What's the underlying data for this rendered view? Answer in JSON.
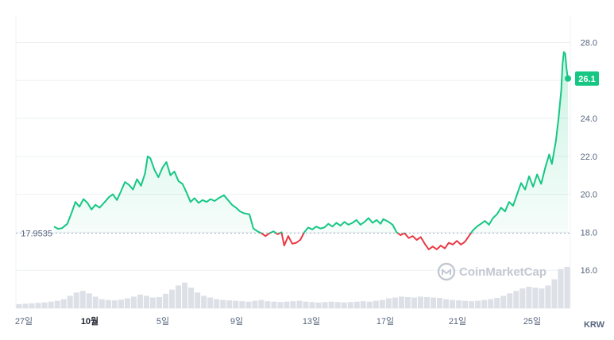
{
  "chart_data": {
    "type": "line",
    "y_axis": {
      "ticks": [
        "16.0",
        "18.0",
        "20.0",
        "22.0",
        "24.0",
        "26.0",
        "28.0"
      ],
      "range": [
        14.0,
        29.4
      ],
      "position": "right"
    },
    "x_axis": {
      "tick_labels": [
        "27일",
        "10월",
        "5일",
        "9일",
        "13일",
        "17일",
        "21일",
        "25일"
      ],
      "bold_labels": [
        "10월"
      ],
      "unit": "KRW"
    },
    "reference_value": 17.9535,
    "reference_label": "17.9535",
    "current_price_label": "26.1",
    "colors": {
      "up": "#16c784",
      "down": "#ea3943",
      "volume": "#dde1e7",
      "badge": "#16c784"
    },
    "watermark": "CoinMarketCap",
    "series": [
      {
        "points": [
          [
            0.0,
            18.3
          ],
          [
            0.3,
            18.18
          ],
          [
            0.6,
            18.22
          ],
          [
            1.0,
            18.45
          ],
          [
            1.3,
            19.0
          ],
          [
            1.6,
            19.6
          ],
          [
            1.9,
            19.35
          ],
          [
            2.2,
            19.75
          ],
          [
            2.5,
            19.55
          ],
          [
            2.8,
            19.2
          ],
          [
            3.1,
            19.45
          ],
          [
            3.4,
            19.3
          ],
          [
            3.8,
            19.6
          ],
          [
            4.1,
            19.85
          ],
          [
            4.4,
            20.0
          ],
          [
            4.7,
            19.7
          ],
          [
            5.0,
            20.15
          ],
          [
            5.3,
            20.65
          ],
          [
            5.6,
            20.5
          ],
          [
            5.9,
            20.25
          ],
          [
            6.2,
            20.8
          ],
          [
            6.5,
            20.45
          ],
          [
            6.8,
            21.1
          ],
          [
            7.0,
            22.0
          ],
          [
            7.2,
            21.9
          ],
          [
            7.5,
            21.3
          ],
          [
            7.8,
            20.9
          ],
          [
            8.1,
            21.4
          ],
          [
            8.4,
            21.7
          ],
          [
            8.7,
            21.0
          ],
          [
            9.0,
            21.2
          ],
          [
            9.3,
            20.7
          ],
          [
            9.6,
            20.55
          ],
          [
            9.9,
            20.1
          ],
          [
            10.2,
            19.6
          ],
          [
            10.5,
            19.8
          ],
          [
            10.8,
            19.55
          ],
          [
            11.1,
            19.7
          ],
          [
            11.4,
            19.6
          ],
          [
            11.7,
            19.75
          ],
          [
            12.0,
            19.65
          ],
          [
            12.3,
            19.8
          ],
          [
            12.7,
            19.95
          ],
          [
            13.0,
            19.7
          ],
          [
            13.3,
            19.45
          ],
          [
            13.6,
            19.3
          ],
          [
            13.9,
            19.1
          ],
          [
            14.2,
            19.0
          ],
          [
            14.6,
            18.95
          ],
          [
            14.9,
            18.2
          ],
          [
            15.2,
            18.05
          ],
          [
            15.5,
            17.95
          ],
          [
            15.8,
            17.8
          ],
          [
            16.1,
            17.95
          ],
          [
            16.4,
            18.05
          ],
          [
            16.7,
            17.9
          ],
          [
            17.0,
            18.0
          ],
          [
            17.2,
            17.3
          ],
          [
            17.5,
            17.8
          ],
          [
            17.8,
            17.4
          ],
          [
            18.1,
            17.45
          ],
          [
            18.4,
            17.6
          ],
          [
            18.7,
            18.0
          ],
          [
            19.0,
            18.25
          ],
          [
            19.3,
            18.15
          ],
          [
            19.6,
            18.3
          ],
          [
            19.9,
            18.2
          ],
          [
            20.2,
            18.25
          ],
          [
            20.5,
            18.45
          ],
          [
            20.8,
            18.3
          ],
          [
            21.1,
            18.5
          ],
          [
            21.4,
            18.35
          ],
          [
            21.7,
            18.55
          ],
          [
            22.0,
            18.4
          ],
          [
            22.3,
            18.5
          ],
          [
            22.6,
            18.65
          ],
          [
            22.9,
            18.4
          ],
          [
            23.2,
            18.55
          ],
          [
            23.5,
            18.75
          ],
          [
            23.8,
            18.5
          ],
          [
            24.1,
            18.65
          ],
          [
            24.4,
            18.45
          ],
          [
            24.6,
            18.7
          ],
          [
            25.0,
            18.55
          ],
          [
            25.3,
            18.4
          ],
          [
            25.6,
            18.0
          ],
          [
            25.9,
            17.85
          ],
          [
            26.2,
            17.95
          ],
          [
            26.5,
            17.7
          ],
          [
            26.8,
            17.8
          ],
          [
            27.1,
            17.6
          ],
          [
            27.4,
            17.75
          ],
          [
            27.7,
            17.4
          ],
          [
            28.0,
            17.1
          ],
          [
            28.3,
            17.25
          ],
          [
            28.6,
            17.1
          ],
          [
            28.9,
            17.3
          ],
          [
            29.2,
            17.15
          ],
          [
            29.5,
            17.45
          ],
          [
            29.8,
            17.35
          ],
          [
            30.1,
            17.55
          ],
          [
            30.4,
            17.35
          ],
          [
            30.7,
            17.5
          ],
          [
            31.0,
            17.8
          ],
          [
            31.3,
            18.1
          ],
          [
            31.6,
            18.3
          ],
          [
            31.9,
            18.45
          ],
          [
            32.2,
            18.6
          ],
          [
            32.5,
            18.4
          ],
          [
            32.8,
            18.75
          ],
          [
            33.1,
            18.95
          ],
          [
            33.4,
            19.3
          ],
          [
            33.7,
            19.1
          ],
          [
            34.0,
            19.6
          ],
          [
            34.3,
            19.4
          ],
          [
            34.6,
            20.0
          ],
          [
            34.9,
            20.6
          ],
          [
            35.2,
            20.25
          ],
          [
            35.5,
            20.95
          ],
          [
            35.8,
            20.4
          ],
          [
            36.1,
            21.05
          ],
          [
            36.4,
            20.55
          ],
          [
            36.7,
            21.4
          ],
          [
            37.0,
            22.1
          ],
          [
            37.2,
            21.6
          ],
          [
            37.5,
            22.8
          ],
          [
            37.7,
            24.0
          ],
          [
            37.9,
            25.5
          ],
          [
            38.0,
            26.9
          ],
          [
            38.1,
            27.5
          ],
          [
            38.2,
            27.4
          ],
          [
            38.3,
            26.6
          ],
          [
            38.4,
            26.1
          ]
        ]
      }
    ],
    "volume": [
      0.1,
      0.11,
      0.12,
      0.13,
      0.14,
      0.16,
      0.18,
      0.22,
      0.3,
      0.38,
      0.42,
      0.36,
      0.28,
      0.22,
      0.2,
      0.19,
      0.21,
      0.24,
      0.28,
      0.33,
      0.3,
      0.26,
      0.27,
      0.35,
      0.45,
      0.55,
      0.62,
      0.5,
      0.38,
      0.3,
      0.26,
      0.22,
      0.2,
      0.19,
      0.18,
      0.17,
      0.16,
      0.18,
      0.2,
      0.17,
      0.16,
      0.15,
      0.16,
      0.17,
      0.18,
      0.16,
      0.15,
      0.14,
      0.15,
      0.16,
      0.15,
      0.14,
      0.15,
      0.16,
      0.17,
      0.16,
      0.18,
      0.2,
      0.24,
      0.26,
      0.28,
      0.27,
      0.26,
      0.28,
      0.27,
      0.26,
      0.25,
      0.22,
      0.2,
      0.19,
      0.18,
      0.17,
      0.18,
      0.2,
      0.22,
      0.25,
      0.3,
      0.36,
      0.42,
      0.48,
      0.52,
      0.5,
      0.48,
      0.55,
      0.7,
      0.95,
      1.0
    ]
  }
}
